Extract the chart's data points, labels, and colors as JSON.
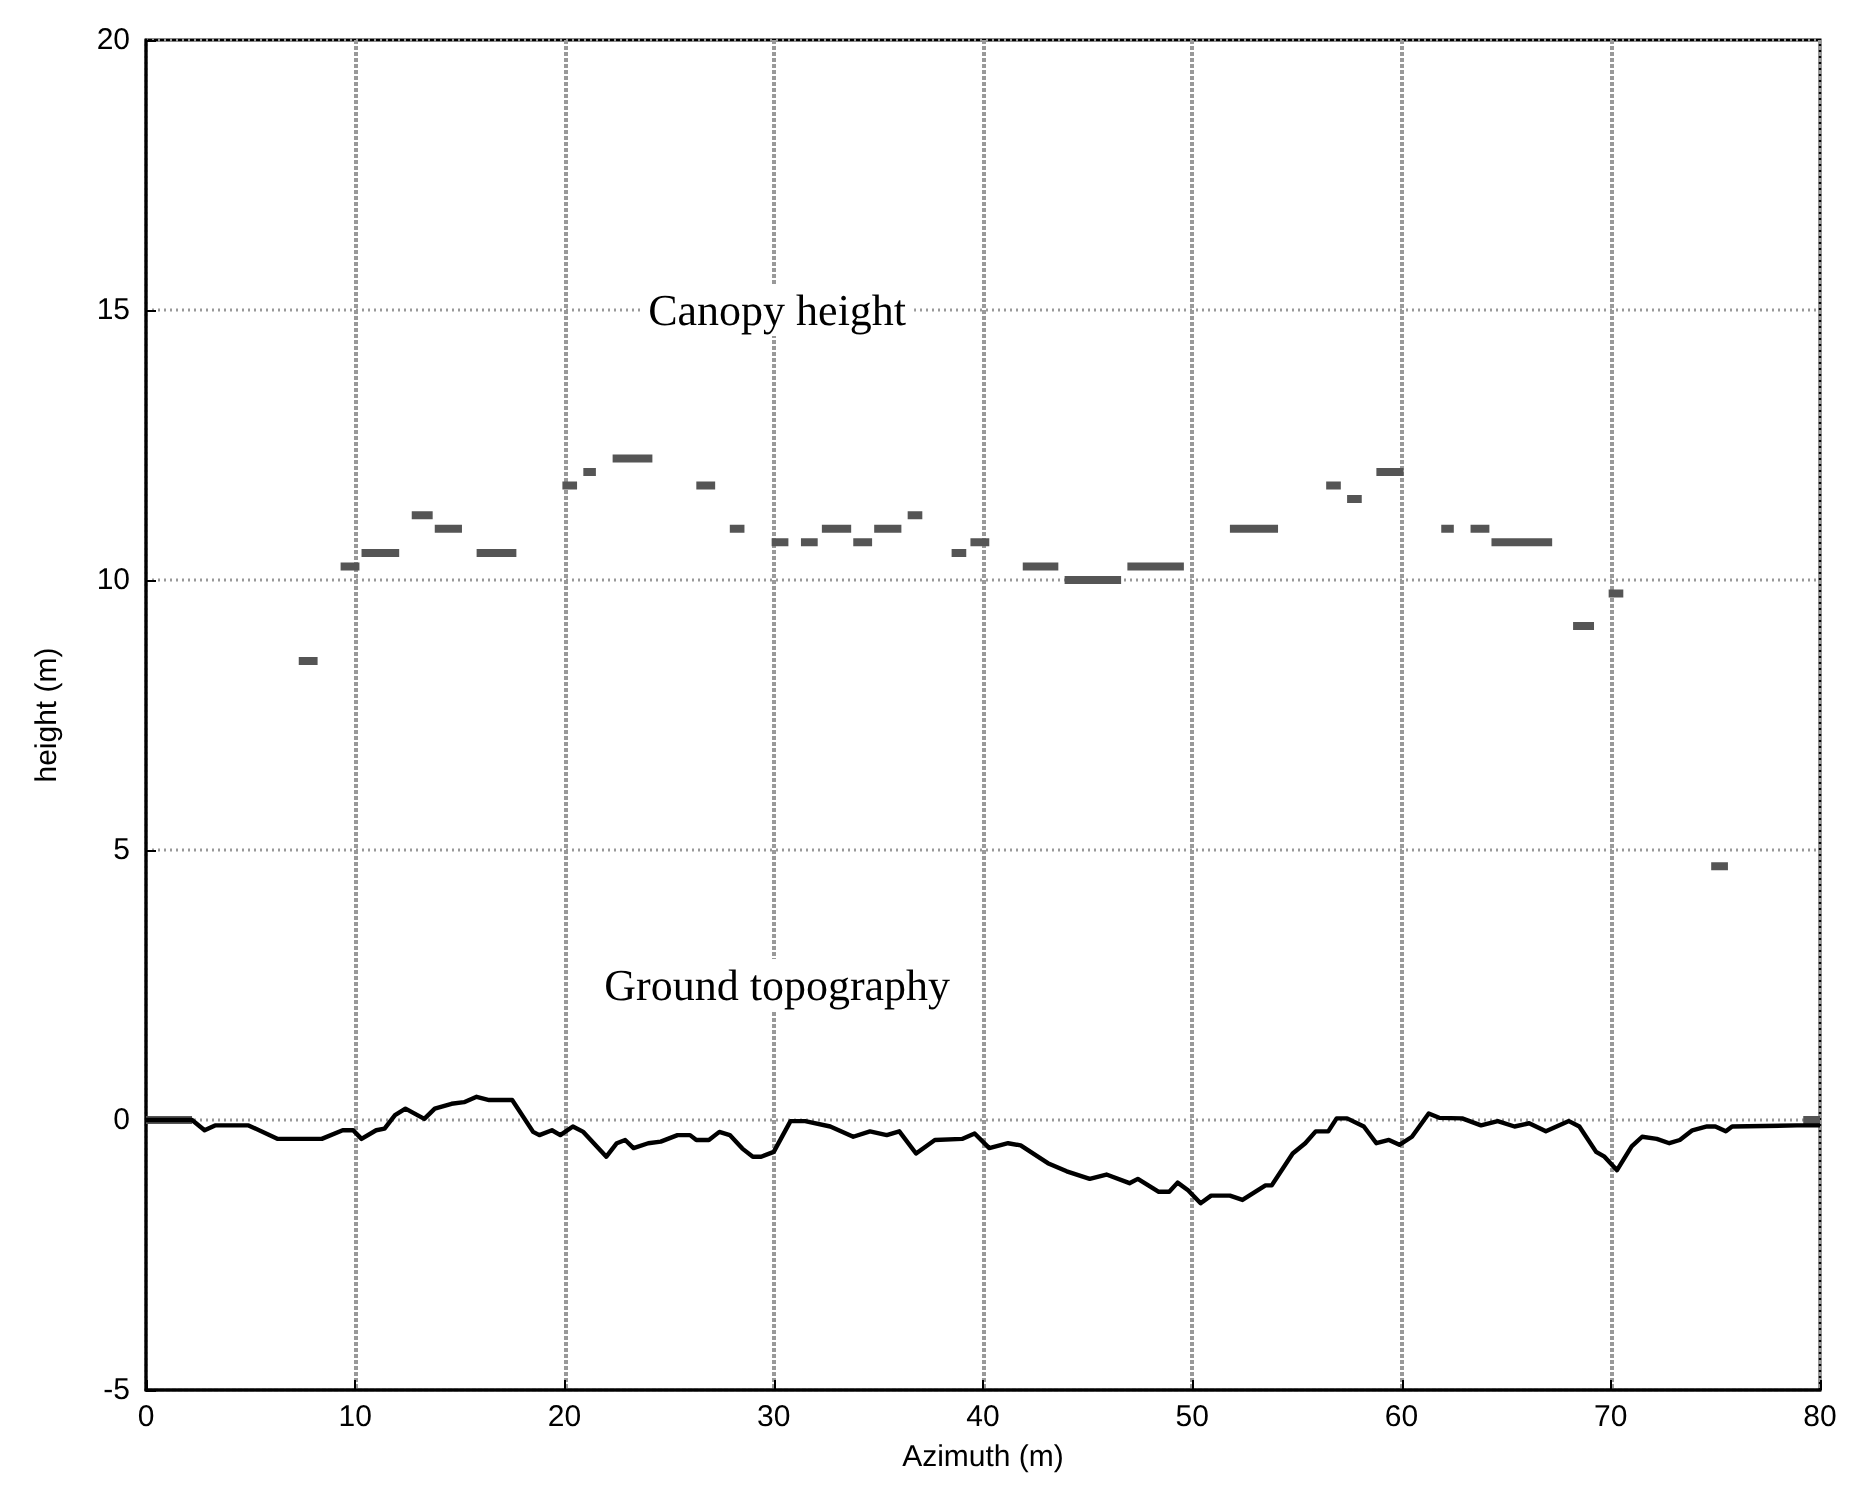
{
  "chart_data": {
    "type": "line",
    "xlabel": "Azimuth (m)",
    "ylabel": "height (m)",
    "xlim": [
      0,
      80
    ],
    "ylim": [
      -5,
      20
    ],
    "xticks": [
      0,
      10,
      20,
      30,
      40,
      50,
      60,
      70,
      80
    ],
    "yticks": [
      -5,
      0,
      5,
      10,
      15,
      20
    ],
    "grid": true,
    "marker": "none",
    "annotations": [
      "Canopy height",
      "Ground topography"
    ],
    "series": [
      {
        "color": "#555555",
        "x": [
          0,
          2.2,
          null,
          7.3,
          8.2,
          null,
          9.3,
          10.2,
          null,
          10.3,
          12.1,
          null,
          12.7,
          13.7,
          null,
          13.8,
          15.1,
          null,
          15.8,
          17.7,
          null,
          19.9,
          20.6,
          null,
          20.9,
          21.5,
          null,
          22.3,
          24.2,
          null,
          26.3,
          27.2,
          null,
          27.9,
          28.6,
          null,
          29.9,
          30.7,
          null,
          31.3,
          32.1,
          null,
          32.3,
          33.7,
          null,
          33.8,
          34.7,
          null,
          34.8,
          36.1,
          null,
          36.4,
          37.1,
          null,
          38.5,
          39.2,
          null,
          39.4,
          40.3,
          null,
          41.9,
          43.6,
          null,
          43.9,
          46.6,
          null,
          46.9,
          49.6,
          null,
          51.8,
          54.1,
          null,
          56.4,
          57.1,
          null,
          57.4,
          58.1,
          null,
          58.8,
          60.1,
          null,
          61.9,
          62.5,
          null,
          63.3,
          64.2,
          null,
          64.3,
          67.2,
          null,
          68.2,
          69.2,
          null,
          69.9,
          70.6,
          null,
          74.8,
          75.6,
          null,
          79.2,
          80
        ],
        "values": [
          0,
          0,
          null,
          8.5,
          8.5,
          null,
          10.25,
          10.25,
          null,
          10.5,
          10.5,
          null,
          11.2,
          11.2,
          null,
          10.95,
          10.95,
          null,
          10.5,
          10.5,
          null,
          11.75,
          11.75,
          null,
          12,
          12,
          null,
          12.25,
          12.25,
          null,
          11.75,
          11.75,
          null,
          10.95,
          10.95,
          null,
          10.7,
          10.7,
          null,
          10.7,
          10.7,
          null,
          10.95,
          10.95,
          null,
          10.7,
          10.7,
          null,
          10.95,
          10.95,
          null,
          11.2,
          11.2,
          null,
          10.5,
          10.5,
          null,
          10.7,
          10.7,
          null,
          10.25,
          10.25,
          null,
          10,
          10,
          null,
          10.25,
          10.25,
          null,
          10.95,
          10.95,
          null,
          11.75,
          11.75,
          null,
          11.5,
          11.5,
          null,
          12,
          12,
          null,
          10.95,
          10.95,
          null,
          10.95,
          10.95,
          null,
          10.7,
          10.7,
          null,
          9.15,
          9.15,
          null,
          9.75,
          9.75,
          null,
          4.7,
          4.7,
          null,
          0,
          0
        ]
      },
      {
        "color": "#000000",
        "x": [
          0,
          2.2,
          2.8,
          3.3,
          4.9,
          6.3,
          8.4,
          9.4,
          9.9,
          10.3,
          11,
          11.4,
          11.9,
          12.4,
          13.3,
          13.8,
          14.6,
          15.2,
          15.8,
          16.4,
          17.5,
          18.5,
          18.8,
          19.4,
          19.8,
          20.4,
          20.9,
          22,
          22.5,
          22.9,
          23.3,
          24,
          24.6,
          25.4,
          26,
          26.3,
          26.9,
          27.4,
          27.9,
          28.5,
          29,
          29.4,
          30,
          30.8,
          31.5,
          32.7,
          33.8,
          34.6,
          35.4,
          36,
          36.8,
          37.7,
          39,
          39.6,
          40.3,
          41.2,
          41.8,
          43.1,
          44,
          45.1,
          45.9,
          47,
          47.4,
          48.4,
          48.9,
          49.3,
          49.8,
          50.4,
          50.9,
          51.8,
          52.4,
          53.5,
          53.8,
          54.8,
          55.4,
          55.9,
          56.5,
          56.9,
          57.4,
          58.2,
          58.8,
          59.4,
          59.9,
          60.5,
          61.3,
          61.8,
          62.9,
          63.8,
          64.6,
          65.4,
          66.1,
          66.9,
          68,
          68.5,
          69.3,
          69.7,
          70.3,
          71,
          71.5,
          72.2,
          72.8,
          73.3,
          73.9,
          74.6,
          75,
          75.5,
          75.8,
          78.9,
          80
        ],
        "values": [
          0,
          0,
          -0.19,
          -0.1,
          -0.1,
          -0.35,
          -0.35,
          -0.19,
          -0.19,
          -0.35,
          -0.19,
          -0.16,
          0.09,
          0.21,
          0.02,
          0.21,
          0.3,
          0.33,
          0.43,
          0.37,
          0.37,
          -0.22,
          -0.28,
          -0.19,
          -0.28,
          -0.12,
          -0.22,
          -0.68,
          -0.43,
          -0.37,
          -0.52,
          -0.43,
          -0.4,
          -0.28,
          -0.28,
          -0.37,
          -0.37,
          -0.22,
          -0.28,
          -0.53,
          -0.68,
          -0.68,
          -0.59,
          -0.02,
          -0.02,
          -0.12,
          -0.31,
          -0.21,
          -0.28,
          -0.21,
          -0.62,
          -0.37,
          -0.35,
          -0.25,
          -0.52,
          -0.43,
          -0.47,
          -0.8,
          -0.95,
          -1.09,
          -1.01,
          -1.17,
          -1.09,
          -1.33,
          -1.33,
          -1.16,
          -1.3,
          -1.54,
          -1.4,
          -1.4,
          -1.48,
          -1.21,
          -1.21,
          -0.62,
          -0.43,
          -0.21,
          -0.21,
          0.03,
          0.03,
          -0.12,
          -0.43,
          -0.37,
          -0.46,
          -0.31,
          0.12,
          0.04,
          0.03,
          -0.1,
          -0.02,
          -0.12,
          -0.06,
          -0.21,
          -0.02,
          -0.12,
          -0.59,
          -0.68,
          -0.93,
          -0.49,
          -0.31,
          -0.35,
          -0.43,
          -0.37,
          -0.19,
          -0.12,
          -0.12,
          -0.21,
          -0.12,
          -0.1,
          -0.1
        ]
      }
    ]
  }
}
